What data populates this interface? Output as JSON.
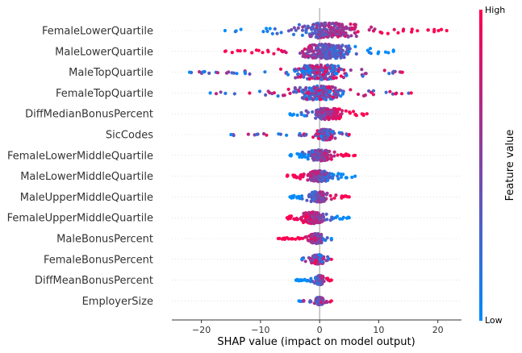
{
  "chart_data": {
    "type": "scatter",
    "subtype": "shap-beeswarm",
    "xlabel": "SHAP value (impact on model output)",
    "xlim": [
      -25,
      24
    ],
    "xticks": [
      -20,
      -10,
      0,
      10,
      20
    ],
    "xtick_labels": [
      "−20",
      "−10",
      "0",
      "10",
      "20"
    ],
    "colorbar": {
      "title": "Feature value",
      "high_label": "High",
      "low_label": "Low",
      "colors": [
        "#008bfb",
        "#ff0051"
      ]
    },
    "features": [
      {
        "name": "FemaleLowerQuartile",
        "min": -16,
        "max": 21.5,
        "core_min": -6,
        "core_max": 9,
        "high_side": "positive",
        "width": 1.0
      },
      {
        "name": "MaleLowerQuartile",
        "min": -16,
        "max": 12.5,
        "core_min": -5,
        "core_max": 7,
        "high_side": "negative",
        "width": 0.95
      },
      {
        "name": "MaleTopQuartile",
        "min": -22,
        "max": 14,
        "core_min": -7,
        "core_max": 7,
        "high_side": "mixed",
        "width": 0.95
      },
      {
        "name": "FemaleTopQuartile",
        "min": -18.5,
        "max": 15.5,
        "core_min": -6,
        "core_max": 6,
        "high_side": "mixed",
        "width": 0.9
      },
      {
        "name": "DiffMedianBonusPercent",
        "min": -5,
        "max": 8,
        "core_min": -2,
        "core_max": 5,
        "high_side": "positive",
        "width": 0.75
      },
      {
        "name": "SicCodes",
        "min": -15,
        "max": 5,
        "core_min": -1,
        "core_max": 3,
        "high_side": "mixed",
        "width": 0.7
      },
      {
        "name": "FemaleLowerMiddleQuartile",
        "min": -5,
        "max": 6,
        "core_min": -3,
        "core_max": 3,
        "high_side": "positive",
        "width": 0.7
      },
      {
        "name": "MaleLowerMiddleQuartile",
        "min": -5.5,
        "max": 6,
        "core_min": -3,
        "core_max": 3,
        "high_side": "negative",
        "width": 0.7
      },
      {
        "name": "MaleUpperMiddleQuartile",
        "min": -5,
        "max": 5,
        "core_min": -2.5,
        "core_max": 2,
        "high_side": "positive",
        "width": 0.7
      },
      {
        "name": "FemaleUpperMiddleQuartile",
        "min": -5.5,
        "max": 5,
        "core_min": -4,
        "core_max": 1.5,
        "high_side": "negative",
        "width": 0.75
      },
      {
        "name": "MaleBonusPercent",
        "min": -7,
        "max": 2,
        "core_min": -2,
        "core_max": 1,
        "high_side": "negative",
        "width": 0.65
      },
      {
        "name": "FemaleBonusPercent",
        "min": -3,
        "max": 2,
        "core_min": -2,
        "core_max": 1.5,
        "high_side": "mixed",
        "width": 0.6
      },
      {
        "name": "DiffMeanBonusPercent",
        "min": -4,
        "max": 2,
        "core_min": -1,
        "core_max": 1,
        "high_side": "positive",
        "width": 0.6
      },
      {
        "name": "EmployerSize",
        "min": -3.5,
        "max": 2,
        "core_min": -1,
        "core_max": 1,
        "high_side": "mixed",
        "width": 0.5
      }
    ]
  }
}
